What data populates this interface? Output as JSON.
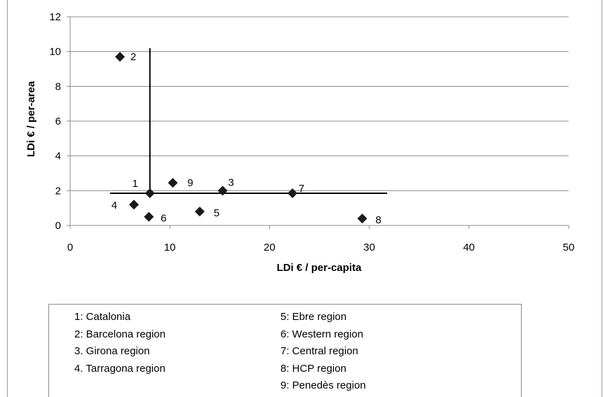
{
  "chart_data": {
    "type": "scatter",
    "xlabel": "LDi € / per-capita",
    "ylabel": "LDi € / per-area",
    "xlim": [
      0,
      50
    ],
    "ylim": [
      0,
      12
    ],
    "xticks": [
      0,
      10,
      20,
      30,
      40,
      50
    ],
    "yticks": [
      0,
      2,
      4,
      6,
      8,
      10,
      12
    ],
    "grid": "horizontal",
    "marker": "diamond",
    "marker_color": "#1a1a1a",
    "points": [
      {
        "label": "1",
        "x": 8.0,
        "y": 1.85
      },
      {
        "label": "2",
        "x": 5.0,
        "y": 9.7
      },
      {
        "label": "3",
        "x": 15.3,
        "y": 2.0
      },
      {
        "label": "4",
        "x": 6.4,
        "y": 1.2
      },
      {
        "label": "5",
        "x": 13.0,
        "y": 0.8
      },
      {
        "label": "6",
        "x": 7.9,
        "y": 0.5
      },
      {
        "label": "7",
        "x": 22.3,
        "y": 1.85
      },
      {
        "label": "8",
        "x": 29.3,
        "y": 0.4
      },
      {
        "label": "9",
        "x": 10.3,
        "y": 2.45
      }
    ],
    "reference_lines": {
      "vertical": {
        "x": 8.0,
        "y_range": [
          1.85,
          10.2
        ]
      },
      "horizontal": {
        "y": 1.85,
        "x_range": [
          4.0,
          31.8
        ]
      }
    }
  },
  "legend": {
    "left": [
      "1: Catalonia",
      "2: Barcelona region",
      "3. Girona region",
      "4. Tarragona region"
    ],
    "right": [
      "5: Ebre region",
      "6: Western region",
      "7: Central region",
      "8: HCP region",
      "9: Penedès region"
    ]
  }
}
